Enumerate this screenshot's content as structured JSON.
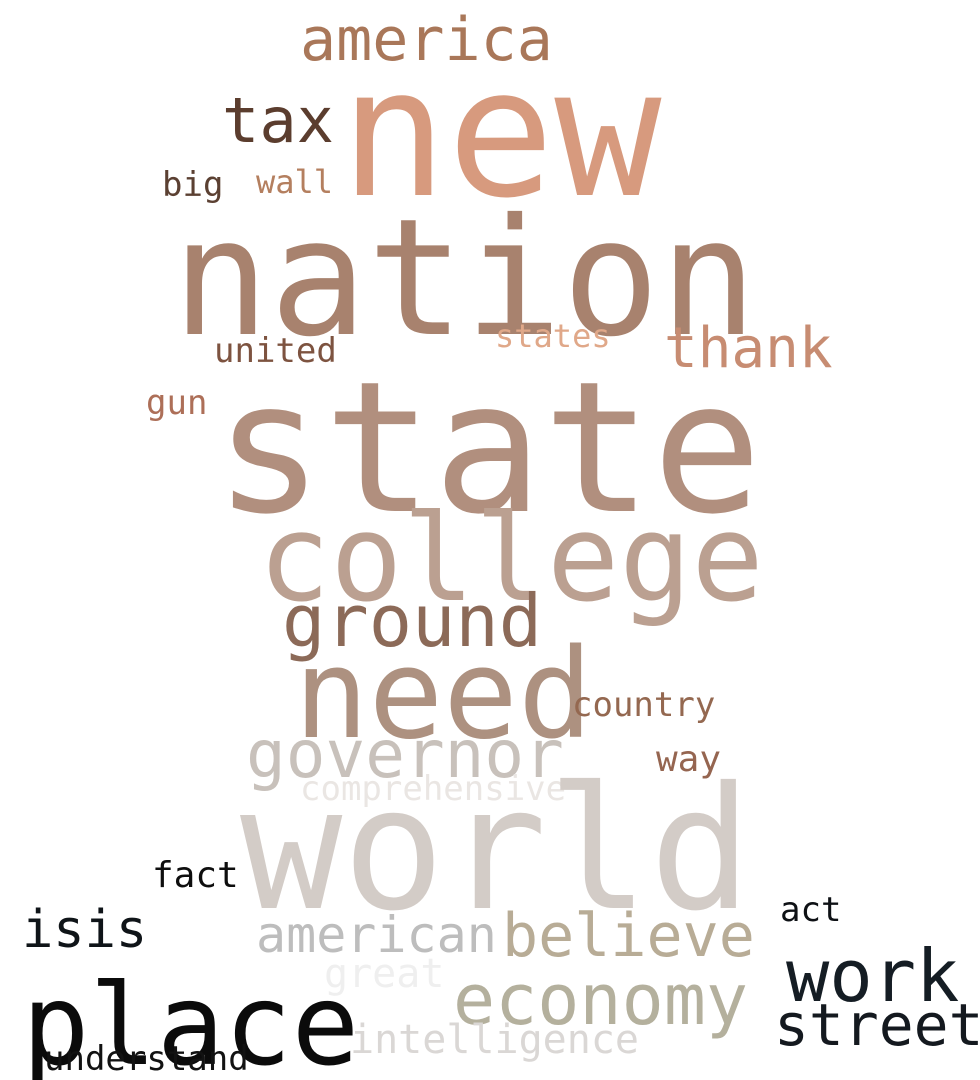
{
  "words": {
    "new": {
      "text": "new",
      "color": "#d79a7e"
    },
    "america": {
      "text": "america",
      "color": "#a97759"
    },
    "tax": {
      "text": "tax",
      "color": "#5b3d2e"
    },
    "big": {
      "text": "big",
      "color": "#5b4032"
    },
    "wall": {
      "text": "wall",
      "color": "#b47f5f"
    },
    "nation": {
      "text": "nation",
      "color": "#a8826e"
    },
    "states": {
      "text": "states",
      "color": "#e0a889"
    },
    "thank": {
      "text": "thank",
      "color": "#c78c72"
    },
    "united": {
      "text": "united",
      "color": "#7d5340"
    },
    "gun": {
      "text": "gun",
      "color": "#ad6f58"
    },
    "state": {
      "text": "state",
      "color": "#b18f7e"
    },
    "college": {
      "text": "college",
      "color": "#bba091"
    },
    "ground": {
      "text": "ground",
      "color": "#8c6a58"
    },
    "need": {
      "text": "need",
      "color": "#ad9180"
    },
    "country": {
      "text": "country",
      "color": "#946850"
    },
    "governor": {
      "text": "governor",
      "color": "#c8c1bb"
    },
    "way": {
      "text": "way",
      "color": "#956550"
    },
    "comprehensive": {
      "text": "comprehensive",
      "color": "#eae6e3"
    },
    "world": {
      "text": "world",
      "color": "#d3ccc7"
    },
    "fact": {
      "text": "fact",
      "color": "#0e0e0e"
    },
    "act": {
      "text": "act",
      "color": "#0e1115"
    },
    "isis": {
      "text": "isis",
      "color": "#0f1418"
    },
    "american": {
      "text": "american",
      "color": "#bdbdbd"
    },
    "believe": {
      "text": "believe",
      "color": "#b8ac96"
    },
    "work": {
      "text": "work",
      "color": "#151d24"
    },
    "great": {
      "text": "great",
      "color": "#efefef"
    },
    "economy": {
      "text": "economy",
      "color": "#b4b09d"
    },
    "street": {
      "text": "street",
      "color": "#14191f"
    },
    "place": {
      "text": "place",
      "color": "#0b0b0b"
    },
    "intelligence": {
      "text": "intelligence",
      "color": "#dad7d5"
    },
    "understand": {
      "text": "understand",
      "color": "#121212"
    }
  }
}
